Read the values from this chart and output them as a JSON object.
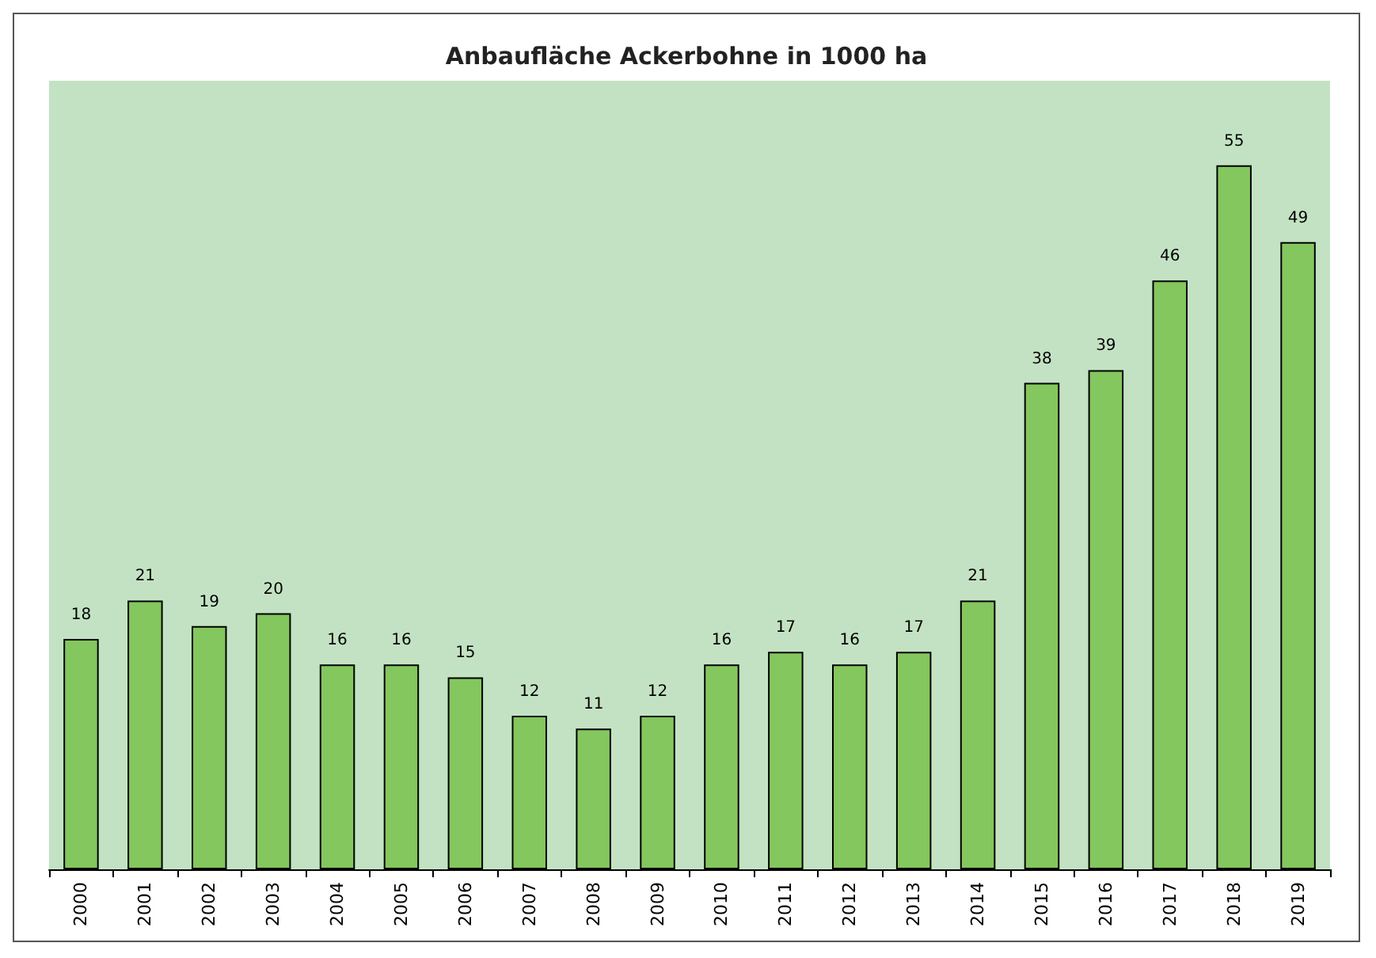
{
  "chart_data": {
    "type": "bar",
    "title": "Anbaufläche Ackerbohne in 1000 ha",
    "categories": [
      "2000",
      "2001",
      "2002",
      "2003",
      "2004",
      "2005",
      "2006",
      "2007",
      "2008",
      "2009",
      "2010",
      "2011",
      "2012",
      "2013",
      "2014",
      "2015",
      "2016",
      "2017",
      "2018",
      "2019"
    ],
    "values": [
      18,
      21,
      19,
      20,
      16,
      16,
      15,
      12,
      11,
      12,
      16,
      17,
      16,
      17,
      21,
      38,
      39,
      46,
      55,
      49
    ],
    "color": "#83c75e",
    "data_labels": true
  }
}
